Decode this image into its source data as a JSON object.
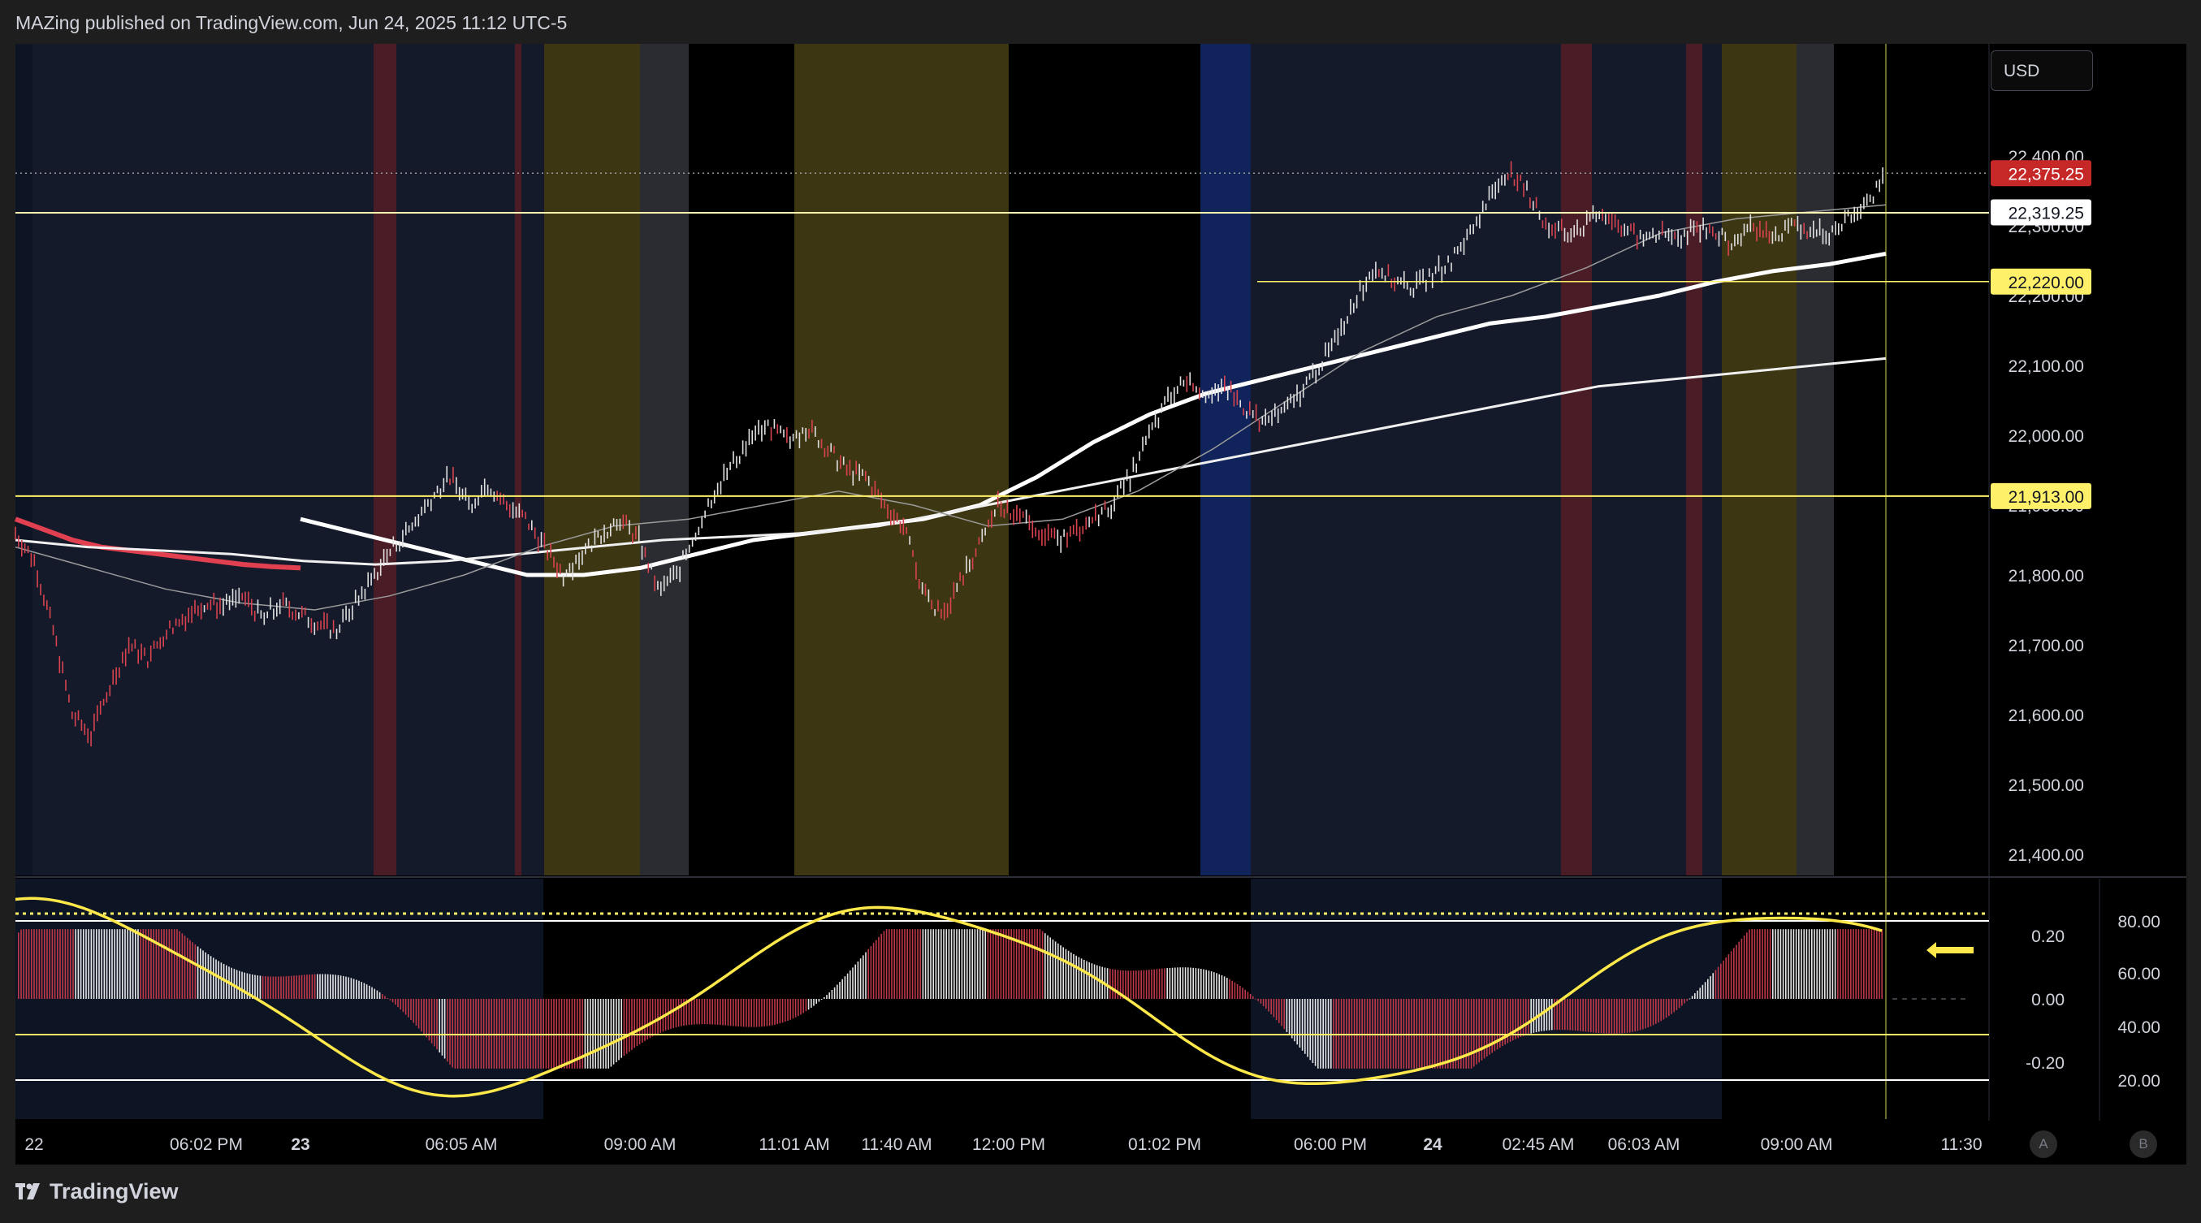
{
  "header": {
    "publish_text": "MAZing published on TradingView.com, Jun 24, 2025 11:12 UTC-5"
  },
  "toolbar": {
    "currency": "USD"
  },
  "price_axis": {
    "ticks": [
      "22,400.00",
      "22,300.00",
      "22,200.00",
      "22,100.00",
      "22,000.00",
      "21,900.00",
      "21,800.00",
      "21,700.00",
      "21,600.00",
      "21,500.00",
      "21,400.00"
    ],
    "tick_values": [
      22400,
      22300,
      22200,
      22100,
      22000,
      21900,
      21800,
      21700,
      21600,
      21500,
      21400
    ]
  },
  "price_labels": {
    "last_price": "22,375.25",
    "level_1": "22,319.25",
    "level_2": "22,220.00",
    "level_3": "21,913.00"
  },
  "oscillator_axis": {
    "left_ticks": [
      "0.20",
      "0.00",
      "-0.20"
    ],
    "right_ticks": [
      "80.00",
      "60.00",
      "40.00",
      "20.00"
    ]
  },
  "time_axis": {
    "labels": [
      "22",
      "06:02 PM",
      "23",
      "06:05 AM",
      "09:00 AM",
      "11:01 AM",
      "11:40 AM",
      "12:00 PM",
      "01:02 PM",
      "06:00 PM",
      "24",
      "02:45 AM",
      "06:03 AM",
      "09:00 AM",
      "11:30"
    ],
    "bold_labels": [
      "23",
      "24"
    ]
  },
  "scale_buttons": {
    "auto": "A",
    "log": "B"
  },
  "footer": {
    "brand": "TradingView"
  },
  "colors": {
    "up": "#e0e0e0",
    "down": "#d9434f",
    "level_line": "#fff06a",
    "last_price_bg": "#c62828",
    "session_red": "#4a1c26",
    "session_yellow": "#3d3612",
    "session_gray": "#2b2c31",
    "session_blue": "#10235a",
    "session_navy": "#0d1424"
  },
  "chart_data": {
    "type": "line",
    "symbol_price_range": [
      21360,
      22440
    ],
    "time_labels": [
      "22",
      "06:02 PM",
      "23",
      "06:05 AM",
      "09:00 AM",
      "11:01 AM",
      "11:40 AM",
      "12:00 PM",
      "01:02 PM",
      "06:00 PM",
      "24",
      "02:45 AM",
      "06:03 AM",
      "09:00 AM",
      "11:30"
    ],
    "price_path": [
      21860,
      21820,
      21720,
      21600,
      21570,
      21640,
      21700,
      21680,
      21720,
      21740,
      21760,
      21755,
      21770,
      21740,
      21760,
      21745,
      21730,
      21720,
      21760,
      21800,
      21840,
      21870,
      21910,
      21940,
      21900,
      21930,
      21900,
      21880,
      21840,
      21800,
      21830,
      21860,
      21880,
      21850,
      21780,
      21800,
      21860,
      21920,
      21960,
      22000,
      22010,
      21990,
      22010,
      21980,
      21950,
      21940,
      21900,
      21870,
      21780,
      21740,
      21790,
      21840,
      21900,
      21880,
      21870,
      21850,
      21860,
      21880,
      21900,
      21940,
      22000,
      22050,
      22080,
      22060,
      22070,
      22040,
      22020,
      22030,
      22060,
      22100,
      22140,
      22200,
      22240,
      22220,
      22210,
      22230,
      22250,
      22290,
      22340,
      22380,
      22350,
      22300,
      22290,
      22300,
      22320,
      22300,
      22280,
      22290,
      22280,
      22300,
      22290,
      22270,
      22300,
      22280,
      22300,
      22290,
      22290,
      22310,
      22330,
      22375
    ],
    "series": [
      {
        "name": "",
        "values": [
          21880,
          21860,
          21840,
          21820,
          21800,
          21800,
          21810,
          21830,
          21850,
          21860,
          21870,
          21880,
          21900,
          21940,
          21990,
          22030,
          22060,
          22080,
          22100,
          22120,
          22140,
          22160,
          22170,
          22185,
          22200,
          22220,
          22235,
          22245,
          22260
        ]
      },
      {
        "name": "",
        "values": [
          21850,
          21840,
          21835,
          21830,
          21820,
          21815,
          21820,
          21830,
          21840,
          21850,
          21855,
          21860,
          21870,
          21890,
          21910,
          21930,
          21950,
          21970,
          21990,
          22010,
          22030,
          22050,
          22070,
          22080,
          22090,
          22100,
          22110
        ]
      }
    ],
    "levels": [
      22319.25,
      22220.0,
      21913.0
    ],
    "last_price": 22375.25,
    "oscillator_range": [
      -0.26,
      0.36
    ],
    "oscillator_levels": [
      0.2,
      0.0,
      -0.2
    ],
    "grid": false
  }
}
